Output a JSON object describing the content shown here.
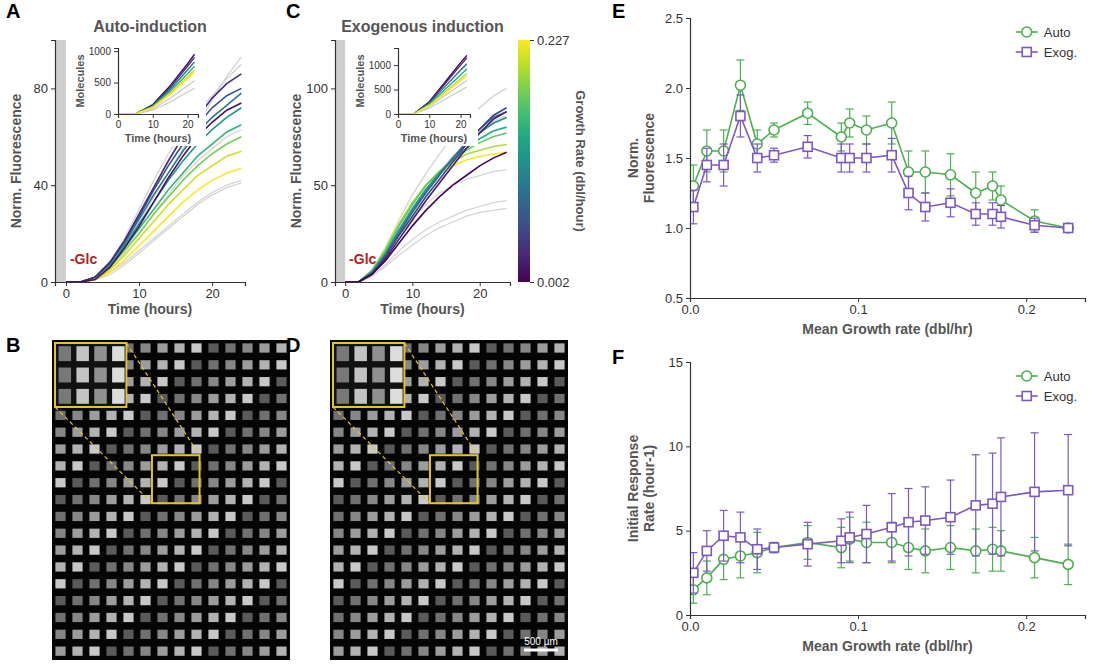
{
  "chart_data": [
    {
      "type": "line",
      "panel": "A",
      "title": "Auto-induction",
      "xlabel": "Time (hours)",
      "ylabel": "Norm. Fluorescence",
      "xlim": [
        -1.5,
        24.5
      ],
      "ylim": [
        0,
        100
      ],
      "xticks": [
        0,
        10,
        20
      ],
      "yticks": [
        0,
        40,
        80
      ],
      "annotations": [
        "-Glc"
      ],
      "shade": [
        -1.5,
        0
      ],
      "x": [
        0,
        2,
        4,
        6,
        8,
        10,
        12,
        14,
        16,
        18,
        20,
        22,
        24
      ],
      "series": [
        {
          "growth_rate": 0.227,
          "values": [
            0,
            0,
            1,
            4,
            9,
            15,
            21,
            27,
            33,
            38,
            42,
            45,
            47
          ]
        },
        {
          "growth_rate": 0.21,
          "values": [
            0,
            0,
            1,
            5,
            11,
            18,
            25,
            32,
            38,
            44,
            48,
            52,
            54
          ]
        },
        {
          "growth_rate": 0.18,
          "values": [
            0,
            0,
            2,
            6,
            13,
            20,
            28,
            35,
            42,
            48,
            53,
            57,
            60
          ]
        },
        {
          "growth_rate": 0.15,
          "values": [
            0,
            0,
            2,
            7,
            14,
            22,
            30,
            38,
            45,
            52,
            57,
            62,
            65
          ]
        },
        {
          "growth_rate": 0.12,
          "values": [
            0,
            0,
            2,
            7,
            15,
            24,
            33,
            42,
            50,
            57,
            63,
            68,
            72
          ]
        },
        {
          "growth_rate": 0.09,
          "values": [
            0,
            0,
            2,
            8,
            16,
            26,
            36,
            45,
            54,
            62,
            68,
            73,
            78
          ]
        },
        {
          "growth_rate": 0.06,
          "values": [
            0,
            0,
            2,
            8,
            17,
            27,
            38,
            48,
            57,
            65,
            72,
            77,
            80
          ]
        },
        {
          "growth_rate": 0.03,
          "values": [
            0,
            0,
            2,
            8,
            17,
            28,
            39,
            50,
            60,
            68,
            76,
            82,
            86
          ]
        },
        {
          "growth_rate": 0.01,
          "values": [
            0,
            0,
            1,
            6,
            14,
            23,
            33,
            43,
            52,
            60,
            66,
            71,
            74
          ]
        },
        {
          "color": "#d4d4d4",
          "values": [
            0,
            0,
            1,
            4,
            8,
            13,
            18,
            23,
            28,
            33,
            37,
            40,
            42
          ]
        },
        {
          "color": "#d4d4d4",
          "values": [
            0,
            0,
            2,
            8,
            18,
            30,
            42,
            53,
            62,
            70,
            77,
            84,
            90
          ]
        },
        {
          "color": "#d4d4d4",
          "values": [
            0,
            0,
            1,
            5,
            12,
            20,
            28,
            36,
            44,
            50,
            55,
            60,
            63
          ]
        },
        {
          "color": "#d4d4d4",
          "values": [
            0,
            0,
            1,
            3,
            7,
            12,
            17,
            22,
            27,
            32,
            36,
            39,
            41
          ]
        },
        {
          "color": "#d4d4d4",
          "values": [
            0,
            0,
            2,
            7,
            15,
            25,
            35,
            45,
            55,
            65,
            75,
            85,
            93
          ]
        }
      ],
      "inset": {
        "xlabel": "Time (hours)",
        "ylabel": "Molecules",
        "x": [
          0,
          5,
          10,
          15,
          20,
          22
        ],
        "xlim": [
          0,
          23
        ],
        "ylim": [
          0,
          1050
        ],
        "xticks": [
          0,
          10,
          20
        ],
        "yticks": [
          0,
          500,
          1000
        ],
        "series": [
          {
            "growth_rate": 0.01,
            "values": [
              0,
              0,
              150,
              450,
              800,
              950
            ]
          },
          {
            "growth_rate": 0.03,
            "values": [
              0,
              0,
              140,
              420,
              760,
              900
            ]
          },
          {
            "growth_rate": 0.09,
            "values": [
              0,
              0,
              130,
              390,
              700,
              830
            ]
          },
          {
            "growth_rate": 0.15,
            "values": [
              0,
              0,
              120,
              360,
              640,
              760
            ]
          },
          {
            "growth_rate": 0.21,
            "values": [
              0,
              0,
              110,
              330,
              590,
              700
            ]
          },
          {
            "growth_rate": 0.227,
            "values": [
              0,
              0,
              100,
              310,
              560,
              660
            ]
          },
          {
            "color": "#c8c8c8",
            "values": [
              0,
              0,
              80,
              250,
              450,
              530
            ]
          },
          {
            "color": "#c8c8c8",
            "values": [
              0,
              0,
              60,
              190,
              350,
              410
            ]
          }
        ]
      }
    },
    {
      "type": "image",
      "panel": "B"
    },
    {
      "type": "line",
      "panel": "C",
      "title": "Exogenous induction",
      "xlabel": "Time (hours)",
      "ylabel": "Norm. Fluorescence",
      "xlim": [
        -1.5,
        24.5
      ],
      "ylim": [
        0,
        125
      ],
      "xticks": [
        0,
        10,
        20
      ],
      "yticks": [
        0,
        50,
        100
      ],
      "annotations": [
        "-Glc"
      ],
      "shade": [
        -1.5,
        0
      ],
      "x": [
        0,
        2,
        4,
        6,
        8,
        10,
        12,
        14,
        16,
        18,
        20,
        22,
        24
      ],
      "series": [
        {
          "growth_rate": 0.227,
          "values": [
            0,
            0,
            6,
            17,
            30,
            41,
            50,
            56,
            60,
            63,
            65,
            66,
            67
          ]
        },
        {
          "growth_rate": 0.2,
          "values": [
            0,
            0,
            6,
            17,
            30,
            41,
            50,
            57,
            62,
            66,
            68,
            70,
            71
          ]
        },
        {
          "growth_rate": 0.17,
          "values": [
            0,
            0,
            6,
            16,
            29,
            40,
            50,
            57,
            63,
            68,
            72,
            75,
            77
          ]
        },
        {
          "growth_rate": 0.14,
          "values": [
            0,
            0,
            5,
            15,
            27,
            38,
            48,
            56,
            63,
            69,
            74,
            78,
            80
          ]
        },
        {
          "growth_rate": 0.11,
          "values": [
            0,
            0,
            5,
            14,
            26,
            37,
            47,
            56,
            64,
            71,
            77,
            82,
            85
          ]
        },
        {
          "growth_rate": 0.08,
          "values": [
            0,
            0,
            5,
            14,
            25,
            36,
            46,
            55,
            64,
            72,
            79,
            85,
            88
          ]
        },
        {
          "growth_rate": 0.05,
          "values": [
            0,
            0,
            4,
            13,
            24,
            34,
            44,
            53,
            62,
            71,
            79,
            86,
            90
          ]
        },
        {
          "growth_rate": 0.02,
          "values": [
            0,
            0,
            4,
            12,
            22,
            32,
            42,
            51,
            60,
            69,
            77,
            84,
            88
          ]
        },
        {
          "growth_rate": 0.005,
          "values": [
            0,
            0,
            4,
            11,
            20,
            29,
            37,
            44,
            50,
            55,
            60,
            64,
            67
          ]
        },
        {
          "color": "#d4d4d4",
          "values": [
            0,
            0,
            5,
            14,
            24,
            33,
            40,
            46,
            50,
            53,
            55,
            57,
            58
          ]
        },
        {
          "color": "#d4d4d4",
          "values": [
            0,
            0,
            3,
            9,
            16,
            22,
            27,
            31,
            34,
            37,
            39,
            41,
            42
          ]
        },
        {
          "color": "#d4d4d4",
          "values": [
            0,
            0,
            6,
            18,
            32,
            45,
            56,
            66,
            75,
            83,
            90,
            96,
            100
          ]
        },
        {
          "color": "#d4d4d4",
          "values": [
            0,
            0,
            5,
            15,
            27,
            38,
            48,
            57,
            65,
            72,
            78,
            83,
            86
          ]
        },
        {
          "color": "#d4d4d4",
          "values": [
            0,
            0,
            3,
            8,
            14,
            19,
            24,
            28,
            31,
            34,
            36,
            37,
            38
          ]
        }
      ],
      "inset": {
        "xlabel": "Time (hours)",
        "ylabel": "Molecules",
        "x": [
          0,
          5,
          10,
          15,
          20,
          22
        ],
        "xlim": [
          0,
          23
        ],
        "ylim": [
          0,
          1350
        ],
        "xticks": [
          0,
          10,
          20
        ],
        "yticks": [
          0,
          500,
          1000
        ],
        "series": [
          {
            "growth_rate": 0.005,
            "values": [
              0,
              0,
              250,
              650,
              1050,
              1200
            ]
          },
          {
            "growth_rate": 0.03,
            "values": [
              0,
              0,
              240,
              620,
              1000,
              1150
            ]
          },
          {
            "growth_rate": 0.08,
            "values": [
              0,
              0,
              220,
              560,
              900,
              1030
            ]
          },
          {
            "growth_rate": 0.14,
            "values": [
              0,
              0,
              200,
              500,
              800,
              920
            ]
          },
          {
            "growth_rate": 0.2,
            "values": [
              0,
              0,
              180,
              450,
              720,
              830
            ]
          },
          {
            "growth_rate": 0.227,
            "values": [
              0,
              0,
              170,
              420,
              680,
              780
            ]
          },
          {
            "color": "#c8c8c8",
            "values": [
              0,
              0,
              150,
              380,
              600,
              690
            ]
          },
          {
            "color": "#c8c8c8",
            "values": [
              0,
              0,
              120,
              300,
              480,
              550
            ]
          }
        ]
      },
      "colorbar": {
        "label": "Growth Rate (dbl/hour)",
        "range": [
          0.002,
          0.227
        ],
        "ticks": [
          0.002,
          0.227
        ]
      }
    },
    {
      "type": "image",
      "panel": "D",
      "annotations": [
        "500 µm"
      ]
    },
    {
      "type": "line",
      "panel": "E",
      "xlabel": "Mean Growth rate (dbl/hr)",
      "ylabel": "Norm. Fluorescence",
      "xlim": [
        0,
        0.235
      ],
      "ylim": [
        0.5,
        2.5
      ],
      "xticks": [
        {
          "value": 0,
          "label": "0.0"
        },
        0.1,
        0.2
      ],
      "yticks": [
        0.5,
        {
          "value": 1,
          "label": "1.0"
        },
        1.5,
        {
          "value": 2,
          "label": "2.0"
        },
        2.5
      ],
      "legend": "upper right",
      "x": [
        0.002,
        0.01,
        0.02,
        0.03,
        0.04,
        0.05,
        0.07,
        0.09,
        0.095,
        0.105,
        0.12,
        0.13,
        0.14,
        0.155,
        0.17,
        0.18,
        0.185,
        0.205,
        0.225
      ],
      "series": [
        {
          "name": "Auto",
          "color": "#4caf50",
          "marker": "circle",
          "values": [
            1.3,
            1.55,
            1.55,
            2.02,
            1.6,
            1.7,
            1.82,
            1.65,
            1.75,
            1.7,
            1.75,
            1.4,
            1.4,
            1.38,
            1.25,
            1.3,
            1.2,
            1.05,
            1.0
          ],
          "errors": [
            0.15,
            0.15,
            0.15,
            0.18,
            0.1,
            0.05,
            0.08,
            0.1,
            0.1,
            0.1,
            0.15,
            0.15,
            0.15,
            0.15,
            0.15,
            0.1,
            0.1,
            0.08,
            0.03
          ]
        },
        {
          "name": "Exog.",
          "color": "#7e57c2",
          "marker": "square",
          "values": [
            1.15,
            1.45,
            1.45,
            1.8,
            1.5,
            1.52,
            1.58,
            1.5,
            1.5,
            1.5,
            1.52,
            1.25,
            1.15,
            1.18,
            1.1,
            1.1,
            1.08,
            1.02,
            1.0
          ],
          "errors": [
            0.12,
            0.12,
            0.15,
            0.15,
            0.1,
            0.05,
            0.08,
            0.1,
            0.1,
            0.1,
            0.12,
            0.12,
            0.1,
            0.1,
            0.08,
            0.08,
            0.08,
            0.05,
            0.03
          ]
        }
      ]
    },
    {
      "type": "line",
      "panel": "F",
      "xlabel": "Mean Growth rate (dbl/hr)",
      "ylabel": "Initial Response Rate (hour-1)",
      "xlim": [
        0,
        0.235
      ],
      "ylim": [
        0,
        15
      ],
      "xticks": [
        {
          "value": 0,
          "label": "0.0"
        },
        0.1,
        0.2
      ],
      "yticks": [
        0,
        5,
        10,
        15
      ],
      "legend": "upper right",
      "x": [
        0.002,
        0.01,
        0.02,
        0.03,
        0.04,
        0.05,
        0.07,
        0.09,
        0.095,
        0.105,
        0.12,
        0.13,
        0.14,
        0.155,
        0.17,
        0.18,
        0.185,
        0.205,
        0.225
      ],
      "series": [
        {
          "name": "Auto",
          "color": "#4caf50",
          "marker": "circle",
          "values": [
            1.5,
            2.2,
            3.3,
            3.5,
            3.7,
            4.0,
            4.3,
            4.0,
            4.5,
            4.3,
            4.3,
            4.0,
            3.8,
            4.0,
            3.8,
            3.9,
            3.8,
            3.4,
            3.0
          ],
          "errors": [
            0.8,
            1.0,
            1.2,
            1.3,
            1.2,
            0.3,
            1.0,
            1.2,
            1.3,
            1.2,
            1.2,
            1.3,
            1.3,
            1.3,
            1.3,
            1.3,
            1.2,
            1.2,
            1.2
          ]
        },
        {
          "name": "Exog.",
          "color": "#7e57c2",
          "marker": "square",
          "values": [
            2.5,
            3.8,
            4.7,
            4.6,
            3.9,
            4.0,
            4.2,
            4.4,
            4.6,
            4.8,
            5.2,
            5.5,
            5.6,
            5.8,
            6.5,
            6.6,
            7.0,
            7.3,
            7.4
          ],
          "errors": [
            1.2,
            1.2,
            1.5,
            1.5,
            1.2,
            0.3,
            1.3,
            1.3,
            1.5,
            1.7,
            2.0,
            2.0,
            2.0,
            2.2,
            3.0,
            3.0,
            3.5,
            3.5,
            3.3
          ]
        }
      ]
    }
  ]
}
